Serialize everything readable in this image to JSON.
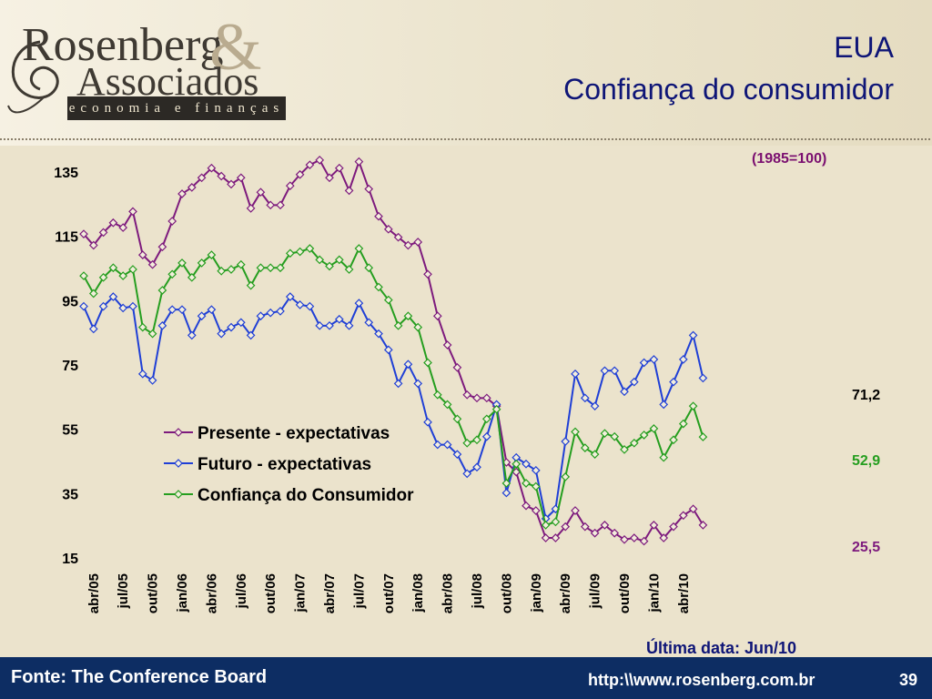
{
  "header": {
    "logo": {
      "line1": "Rosenberg",
      "amp": "&",
      "line2": "Associados",
      "tagline": "economia e finanças"
    },
    "title_line1": "EUA",
    "title_line2": "Confiança do consumidor",
    "base_note": "(1985=100)"
  },
  "footer": {
    "source": "Fonte: The Conference Board",
    "url": "http:\\\\www.rosenberg.com.br",
    "page_number": "39",
    "last_date": "Última data: Jun/10"
  },
  "colors": {
    "presente": "#7d1a7d",
    "futuro": "#1f3fd6",
    "confianca": "#259e1f",
    "title": "#0e1577",
    "footer_bg": "#0d2d63"
  },
  "chart_data": {
    "type": "line",
    "ylim": [
      15,
      140
    ],
    "y_ticks": [
      "135",
      "115",
      "95",
      "75",
      "55",
      "35",
      "15"
    ],
    "x_tick_labels": [
      "abr/05",
      "jul/05",
      "out/05",
      "jan/06",
      "abr/06",
      "jul/06",
      "out/06",
      "jan/07",
      "abr/07",
      "jul/07",
      "out/07",
      "jan/08",
      "abr/08",
      "jul/08",
      "out/08",
      "jan/09",
      "abr/09",
      "jul/09",
      "out/09",
      "jan/10",
      "abr/10"
    ],
    "x_start": "2005-03",
    "x_end": "2010-06",
    "series": [
      {
        "name": "Presente - expectativas",
        "end_label": "25,5",
        "values": [
          116.0,
          112.5,
          116.5,
          119.5,
          118.0,
          123.0,
          109.5,
          106.5,
          112.0,
          120.0,
          128.5,
          130.5,
          133.5,
          136.5,
          134.0,
          131.5,
          133.5,
          124.0,
          129.0,
          125.0,
          125.0,
          131.0,
          134.5,
          137.5,
          139.0,
          133.5,
          136.5,
          129.5,
          138.5,
          130.0,
          121.5,
          117.5,
          115.0,
          112.5,
          113.5,
          103.5,
          90.5,
          81.5,
          74.5,
          66.0,
          65.0,
          65.0,
          62.5,
          45.0,
          42.0,
          31.5,
          30.0,
          21.5,
          21.5,
          25.0,
          30.0,
          25.0,
          23.0,
          25.5,
          23.0,
          21.0,
          21.5,
          20.5,
          25.5,
          21.5,
          25.0,
          28.5,
          30.5,
          25.5
        ]
      },
      {
        "name": "Futuro - expectativas",
        "end_label": "71,2",
        "values": [
          93.5,
          86.5,
          93.5,
          96.5,
          93.0,
          93.5,
          72.5,
          70.5,
          87.5,
          92.5,
          92.5,
          84.5,
          90.5,
          92.5,
          85.0,
          87.0,
          88.5,
          84.5,
          90.5,
          91.5,
          92.0,
          96.5,
          94.0,
          93.5,
          87.5,
          87.5,
          89.5,
          87.5,
          94.5,
          88.5,
          85.0,
          80.0,
          69.5,
          75.5,
          69.5,
          57.5,
          50.5,
          50.5,
          47.5,
          41.5,
          43.5,
          53.0,
          63.0,
          35.5,
          46.5,
          44.5,
          42.5,
          27.5,
          30.5,
          51.5,
          72.5,
          65.0,
          62.5,
          73.5,
          73.5,
          67.0,
          70.0,
          76.0,
          77.0,
          63.0,
          70.0,
          77.0,
          84.5,
          71.2
        ]
      },
      {
        "name": "Confiança do Consumidor",
        "end_label": "52,9",
        "values": [
          103.0,
          97.5,
          102.5,
          105.5,
          103.0,
          105.0,
          87.0,
          85.0,
          98.5,
          103.5,
          107.0,
          102.5,
          107.0,
          109.5,
          104.5,
          105.0,
          106.5,
          100.0,
          105.5,
          105.5,
          105.5,
          110.0,
          110.5,
          111.5,
          108.0,
          106.0,
          108.0,
          105.0,
          111.5,
          105.5,
          99.5,
          95.5,
          87.5,
          90.5,
          87.0,
          76.0,
          66.0,
          63.0,
          58.5,
          51.0,
          52.0,
          58.5,
          61.5,
          38.5,
          44.5,
          38.5,
          37.5,
          25.5,
          26.5,
          40.5,
          54.5,
          49.5,
          47.5,
          54.0,
          53.0,
          49.0,
          51.0,
          53.5,
          55.5,
          46.5,
          52.0,
          57.0,
          62.5,
          52.9
        ]
      }
    ],
    "legend_position": "center",
    "grid": false
  }
}
